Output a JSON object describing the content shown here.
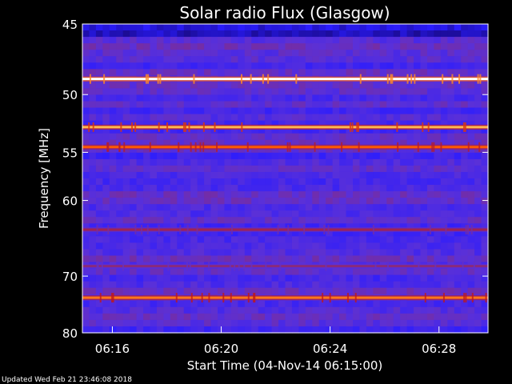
{
  "chart_data": {
    "type": "heatmap",
    "title": "Solar radio Flux (Glasgow)",
    "xlabel": "Start Time (04-Nov-14 06:15:00)",
    "ylabel": "Frequency [MHz]",
    "x_ticks": [
      "06:16",
      "06:20",
      "06:24",
      "06:28"
    ],
    "x_tick_minutes": [
      16,
      20,
      24,
      28
    ],
    "xlim_minutes": [
      14.9,
      29.8
    ],
    "y_ticks": [
      45,
      50,
      55,
      60,
      70,
      80
    ],
    "ylim": [
      45,
      80
    ],
    "y_scale": "reciprocal",
    "grid": false,
    "colormap": [
      "#000000",
      "#1a0a8a",
      "#2a1cff",
      "#5a30d8",
      "#8a2a7a",
      "#c01818",
      "#ff5a00",
      "#ffd060",
      "#ffffff"
    ],
    "background_level": 0.35,
    "emission_bands_mhz": [
      {
        "frequency": 48.8,
        "intensity": 1.0
      },
      {
        "frequency": 52.7,
        "intensity": 0.85
      },
      {
        "frequency": 54.5,
        "intensity": 0.75
      },
      {
        "frequency": 63.5,
        "intensity": 0.55
      },
      {
        "frequency": 68.5,
        "intensity": 0.5
      },
      {
        "frequency": 73.5,
        "intensity": 0.78
      }
    ],
    "footer": "Updated Wed Feb 21 23:46:08 2018"
  }
}
